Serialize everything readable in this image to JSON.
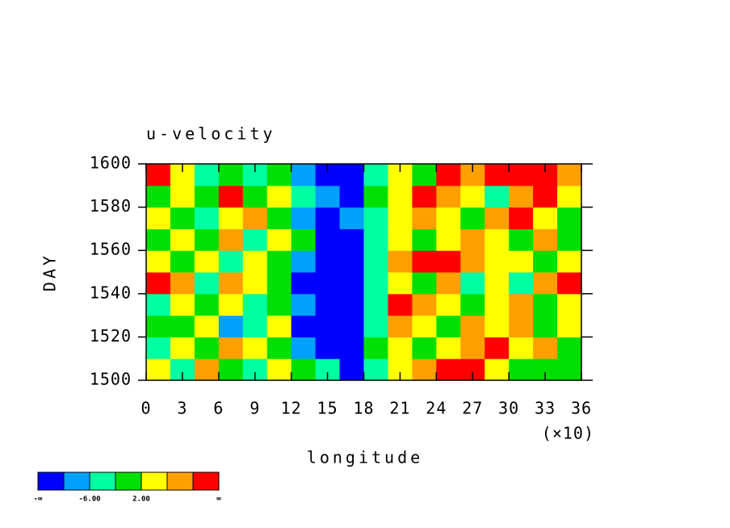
{
  "chart_data": {
    "type": "contour",
    "title": "u-velocity",
    "xlabel": "longitude",
    "ylabel": "DAY",
    "x_multiplier_label": "(×10)",
    "x": [
      1,
      3,
      5,
      7,
      9,
      11,
      13,
      15,
      17,
      19,
      21,
      23,
      25,
      27,
      29,
      31,
      33,
      35
    ],
    "y": [
      1505,
      1515,
      1525,
      1535,
      1545,
      1555,
      1565,
      1575,
      1585,
      1595
    ],
    "values": [
      [
        3,
        -4,
        9,
        1,
        -3,
        2,
        -1,
        -6,
        -12,
        -3,
        2,
        6,
        12,
        11,
        4,
        0,
        -2,
        1
      ],
      [
        -3,
        5,
        -1,
        8,
        2,
        -2,
        -8,
        -12,
        -11,
        -2,
        4,
        -1,
        3,
        8,
        11,
        2,
        6,
        -1
      ],
      [
        1,
        -2,
        4,
        -7,
        -3,
        5,
        -11,
        -13,
        -12,
        -4,
        8,
        3,
        -1,
        6,
        2,
        7,
        0,
        3
      ],
      [
        -5,
        3,
        0,
        2,
        -4,
        1,
        -9,
        -14,
        -12,
        -3,
        11,
        6,
        2,
        -2,
        5,
        8,
        -1,
        4
      ],
      [
        12,
        6,
        -3,
        9,
        4,
        -2,
        -12,
        -14,
        -13,
        -5,
        3,
        0,
        6,
        -3,
        2,
        -4,
        8,
        11
      ],
      [
        2,
        -1,
        5,
        -4,
        3,
        0,
        -8,
        -13,
        -14,
        -6,
        6,
        12,
        13,
        9,
        5,
        2,
        0,
        4
      ],
      [
        -2,
        4,
        1,
        6,
        -3,
        2,
        0,
        -11,
        -13,
        -4,
        2,
        -1,
        5,
        8,
        3,
        -2,
        6,
        1
      ],
      [
        5,
        0,
        -3,
        2,
        7,
        1,
        -7,
        -12,
        -8,
        -3,
        4,
        9,
        2,
        -1,
        6,
        10,
        3,
        -2
      ],
      [
        -1,
        3,
        -2,
        11,
        0,
        4,
        -5,
        -9,
        -13,
        -2,
        5,
        12,
        8,
        4,
        -3,
        7,
        11,
        2
      ],
      [
        10,
        2,
        -4,
        1,
        -3,
        0,
        -8,
        -11,
        -12,
        -6,
        3,
        -2,
        11,
        6,
        12,
        13,
        12,
        9
      ]
    ],
    "xlim": [
      0,
      36
    ],
    "xticks": [
      0,
      3,
      6,
      9,
      12,
      15,
      18,
      21,
      24,
      27,
      30,
      33,
      36
    ],
    "ylim": [
      1500,
      1600
    ],
    "yticks": [
      1500,
      1520,
      1540,
      1560,
      1580,
      1600
    ],
    "levels": [
      -10,
      -6,
      -2,
      2,
      6,
      10
    ],
    "colors": [
      "#0000ff",
      "#00a0ff",
      "#00ffa0",
      "#00e000",
      "#ffff00",
      "#ffa000",
      "#ff0000"
    ],
    "colorbar_ticks": [
      {
        "value": -6,
        "label": "-6.00"
      },
      {
        "value": 2,
        "label": "2.00"
      }
    ],
    "colorbar_end_labels": [
      "-∞",
      "∞"
    ]
  }
}
